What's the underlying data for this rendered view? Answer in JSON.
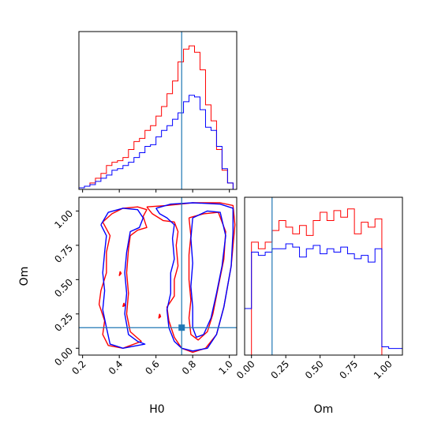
{
  "chart_data": {
    "type": "corner",
    "colors": {
      "series_a": "#ff0000",
      "series_b": "#0000ff",
      "truth": "#1f77b4"
    },
    "truth": {
      "H0": 0.74,
      "Om": 0.15
    },
    "labels": {
      "x_h0": "H0",
      "x_om": "Om",
      "y_om": "Om"
    },
    "h0_axis": {
      "range": [
        0.18,
        1.04
      ],
      "ticks": [
        "0.2",
        "0.4",
        "0.6",
        "0.8",
        "1.0"
      ]
    },
    "om_axis": {
      "range": [
        -0.05,
        1.1
      ],
      "ticks": [
        "0.00",
        "0.25",
        "0.50",
        "0.75",
        "1.00"
      ]
    },
    "h0_hist": {
      "bin_edges": [
        0.18,
        0.21,
        0.24,
        0.27,
        0.3,
        0.33,
        0.36,
        0.39,
        0.42,
        0.45,
        0.48,
        0.51,
        0.54,
        0.57,
        0.6,
        0.63,
        0.66,
        0.69,
        0.72,
        0.75,
        0.78,
        0.81,
        0.84,
        0.87,
        0.9,
        0.93,
        0.96,
        0.99,
        1.02
      ],
      "series_a": [
        1,
        2,
        4,
        7,
        10,
        15,
        17,
        18,
        20,
        25,
        30,
        32,
        37,
        40,
        46,
        52,
        60,
        68,
        80,
        88,
        90,
        86,
        75,
        53,
        43,
        25,
        12,
        4
      ],
      "series_b": [
        1,
        2,
        3,
        5,
        7,
        9,
        12,
        13,
        15,
        17,
        20,
        23,
        27,
        28,
        33,
        37,
        40,
        44,
        48,
        55,
        59,
        58,
        50,
        39,
        37,
        27,
        13,
        4
      ]
    },
    "om_hist": {
      "bin_edges": [
        -0.05,
        0.0,
        0.05,
        0.1,
        0.15,
        0.2,
        0.25,
        0.3,
        0.35,
        0.4,
        0.45,
        0.5,
        0.55,
        0.6,
        0.65,
        0.7,
        0.75,
        0.8,
        0.85,
        0.9,
        0.95,
        1.0,
        1.05,
        1.1
      ],
      "series_a": [
        0,
        0.68,
        0.64,
        0.68,
        0.75,
        0.81,
        0.77,
        0.73,
        0.78,
        0.72,
        0.81,
        0.86,
        0.81,
        0.87,
        0.83,
        0.88,
        0.73,
        0.8,
        0.77,
        0.82,
        0.0,
        0.0,
        0.0
      ],
      "series_b": [
        0.28,
        0.62,
        0.6,
        0.62,
        0.64,
        0.64,
        0.67,
        0.65,
        0.59,
        0.64,
        0.66,
        0.61,
        0.64,
        0.62,
        0.65,
        0.61,
        0.58,
        0.6,
        0.56,
        0.64,
        0.05,
        0.04,
        0.04
      ]
    },
    "contours": {
      "series_a": [
        [
          [
            0.55,
            1.03
          ],
          [
            0.66,
            1.04
          ],
          [
            0.8,
            1.06
          ],
          [
            0.95,
            1.06
          ],
          [
            1.02,
            1.04
          ],
          [
            1.03,
            0.9
          ],
          [
            1.01,
            0.6
          ],
          [
            0.97,
            0.3
          ],
          [
            0.93,
            0.1
          ],
          [
            0.87,
            0.0
          ],
          [
            0.8,
            -0.03
          ],
          [
            0.74,
            0.0
          ],
          [
            0.7,
            0.08
          ],
          [
            0.67,
            0.2
          ],
          [
            0.66,
            0.3
          ],
          [
            0.7,
            0.38
          ],
          [
            0.7,
            0.5
          ],
          [
            0.72,
            0.6
          ],
          [
            0.71,
            0.75
          ],
          [
            0.72,
            0.85
          ],
          [
            0.7,
            0.92
          ],
          [
            0.64,
            0.93
          ],
          [
            0.58,
            0.98
          ],
          [
            0.55,
            1.03
          ]
        ],
        [
          [
            0.31,
            0.92
          ],
          [
            0.36,
            0.98
          ],
          [
            0.42,
            1.02
          ],
          [
            0.5,
            1.03
          ],
          [
            0.55,
            1.01
          ],
          [
            0.53,
            0.96
          ],
          [
            0.55,
            0.88
          ],
          [
            0.5,
            0.86
          ],
          [
            0.46,
            0.82
          ],
          [
            0.45,
            0.72
          ],
          [
            0.44,
            0.55
          ],
          [
            0.45,
            0.4
          ],
          [
            0.44,
            0.25
          ],
          [
            0.46,
            0.12
          ],
          [
            0.52,
            0.05
          ],
          [
            0.42,
            0.0
          ],
          [
            0.34,
            0.02
          ],
          [
            0.31,
            0.1
          ],
          [
            0.32,
            0.2
          ],
          [
            0.29,
            0.32
          ],
          [
            0.3,
            0.42
          ],
          [
            0.33,
            0.55
          ],
          [
            0.33,
            0.7
          ],
          [
            0.35,
            0.82
          ],
          [
            0.31,
            0.92
          ]
        ],
        [
          [
            0.78,
            0.95
          ],
          [
            0.86,
            0.98
          ],
          [
            0.94,
            0.99
          ],
          [
            0.98,
            0.85
          ],
          [
            0.97,
            0.65
          ],
          [
            0.94,
            0.45
          ],
          [
            0.91,
            0.25
          ],
          [
            0.88,
            0.12
          ],
          [
            0.83,
            0.06
          ],
          [
            0.79,
            0.1
          ],
          [
            0.78,
            0.22
          ],
          [
            0.79,
            0.35
          ],
          [
            0.78,
            0.5
          ],
          [
            0.78,
            0.68
          ],
          [
            0.79,
            0.82
          ],
          [
            0.78,
            0.95
          ]
        ],
        [
          [
            0.405,
            0.56
          ],
          [
            0.41,
            0.545
          ],
          [
            0.4,
            0.53
          ],
          [
            0.405,
            0.56
          ]
        ],
        [
          [
            0.62,
            0.25
          ],
          [
            0.625,
            0.23
          ],
          [
            0.615,
            0.22
          ],
          [
            0.62,
            0.25
          ]
        ],
        [
          [
            0.425,
            0.33
          ],
          [
            0.43,
            0.31
          ],
          [
            0.42,
            0.305
          ],
          [
            0.425,
            0.33
          ]
        ]
      ],
      "series_b": [
        [
          [
            0.6,
            1.02
          ],
          [
            0.68,
            1.05
          ],
          [
            0.8,
            1.06
          ],
          [
            0.95,
            1.05
          ],
          [
            1.02,
            1.02
          ],
          [
            1.02,
            0.85
          ],
          [
            1.01,
            0.6
          ],
          [
            0.97,
            0.3
          ],
          [
            0.93,
            0.1
          ],
          [
            0.88,
            0.0
          ],
          [
            0.8,
            -0.02
          ],
          [
            0.74,
            0.0
          ],
          [
            0.7,
            0.05
          ],
          [
            0.67,
            0.15
          ],
          [
            0.66,
            0.28
          ],
          [
            0.68,
            0.4
          ],
          [
            0.68,
            0.55
          ],
          [
            0.7,
            0.65
          ],
          [
            0.69,
            0.8
          ],
          [
            0.7,
            0.9
          ],
          [
            0.66,
            0.95
          ],
          [
            0.62,
            0.98
          ],
          [
            0.6,
            1.02
          ]
        ],
        [
          [
            0.3,
            0.9
          ],
          [
            0.34,
            0.99
          ],
          [
            0.42,
            1.02
          ],
          [
            0.5,
            1.01
          ],
          [
            0.53,
            0.95
          ],
          [
            0.51,
            0.88
          ],
          [
            0.46,
            0.85
          ],
          [
            0.44,
            0.7
          ],
          [
            0.43,
            0.55
          ],
          [
            0.44,
            0.4
          ],
          [
            0.43,
            0.25
          ],
          [
            0.45,
            0.1
          ],
          [
            0.5,
            0.05
          ],
          [
            0.54,
            0.03
          ],
          [
            0.42,
            0.0
          ],
          [
            0.35,
            0.03
          ],
          [
            0.33,
            0.15
          ],
          [
            0.31,
            0.28
          ],
          [
            0.32,
            0.42
          ],
          [
            0.31,
            0.55
          ],
          [
            0.32,
            0.7
          ],
          [
            0.33,
            0.82
          ],
          [
            0.3,
            0.9
          ]
        ],
        [
          [
            0.8,
            0.95
          ],
          [
            0.88,
            1.0
          ],
          [
            0.95,
            0.99
          ],
          [
            0.98,
            0.82
          ],
          [
            0.96,
            0.6
          ],
          [
            0.93,
            0.4
          ],
          [
            0.9,
            0.22
          ],
          [
            0.86,
            0.1
          ],
          [
            0.82,
            0.08
          ],
          [
            0.8,
            0.15
          ],
          [
            0.8,
            0.3
          ],
          [
            0.79,
            0.45
          ],
          [
            0.8,
            0.62
          ],
          [
            0.79,
            0.8
          ],
          [
            0.8,
            0.95
          ]
        ]
      ]
    }
  }
}
